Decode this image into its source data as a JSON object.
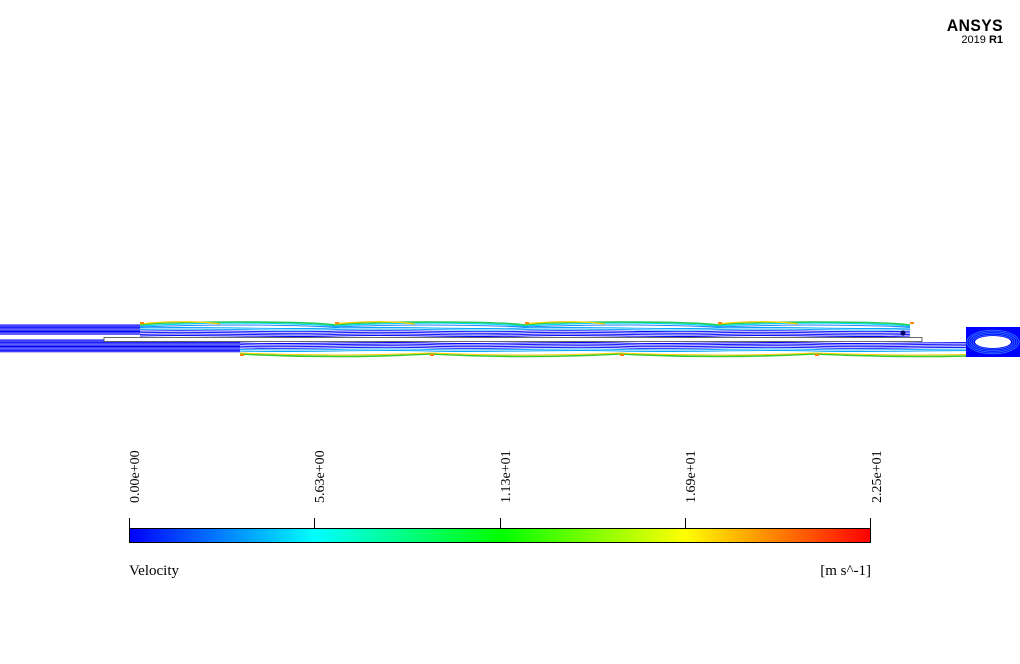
{
  "logo": {
    "name": "ANSYS",
    "year": "2019",
    "release": "R1"
  },
  "legend": {
    "variable": "Velocity",
    "units": "[m s^-1]",
    "ticks": [
      "0.00e+00",
      "5.63e+00",
      "1.13e+01",
      "1.69e+01",
      "2.25e+01"
    ],
    "colormap": [
      "#0000ff",
      "#00ffff",
      "#00ff00",
      "#ffff00",
      "#ff0000"
    ]
  }
}
